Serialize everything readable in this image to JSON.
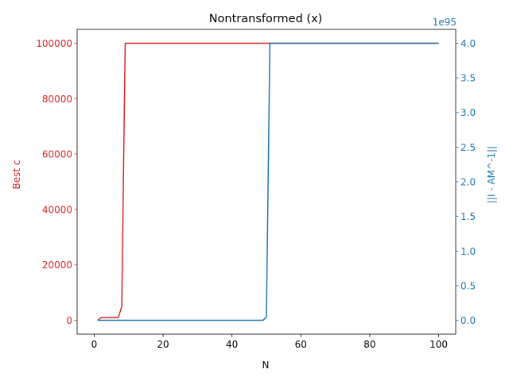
{
  "chart_data": {
    "type": "line",
    "title": "Nontransformed (x)",
    "xlabel": "N",
    "xlim": [
      -4.95,
      104.95
    ],
    "x_ticks": [
      0,
      20,
      40,
      60,
      80,
      100
    ],
    "left_axis": {
      "label": "Best c",
      "color": "#d62728",
      "ylim": [
        -5000,
        105000
      ],
      "ticks": [
        0,
        20000,
        40000,
        60000,
        80000,
        100000
      ]
    },
    "right_axis": {
      "label": "||I - AM^-1||",
      "color": "#1f77b4",
      "offset_text": "1e95",
      "ylim": [
        -0.2,
        4.2
      ],
      "ticks": [
        0.0,
        0.5,
        1.0,
        1.5,
        2.0,
        2.5,
        3.0,
        3.5,
        4.0
      ],
      "tick_labels": [
        "0.0",
        "0.5",
        "1.0",
        "1.5",
        "2.0",
        "2.5",
        "3.0",
        "3.5",
        "4.0"
      ]
    },
    "series": [
      {
        "axis": "left",
        "color": "#d62728",
        "x": [
          1,
          2,
          3,
          4,
          5,
          6,
          7,
          8,
          9,
          10,
          20,
          30,
          40,
          50,
          60,
          70,
          80,
          90,
          100
        ],
        "values": [
          0,
          1000,
          1000,
          1000,
          1000,
          1000,
          1000,
          5000,
          100000,
          100000,
          100000,
          100000,
          100000,
          100000,
          100000,
          100000,
          100000,
          100000,
          100000
        ]
      },
      {
        "axis": "right",
        "color": "#1f77b4",
        "x": [
          1,
          10,
          20,
          30,
          40,
          49,
          50,
          51,
          52,
          60,
          70,
          80,
          90,
          100
        ],
        "values": [
          0,
          0,
          0,
          0,
          0,
          0,
          0.05,
          4.0,
          4.0,
          4.0,
          4.0,
          4.0,
          4.0,
          4.0
        ]
      }
    ]
  }
}
